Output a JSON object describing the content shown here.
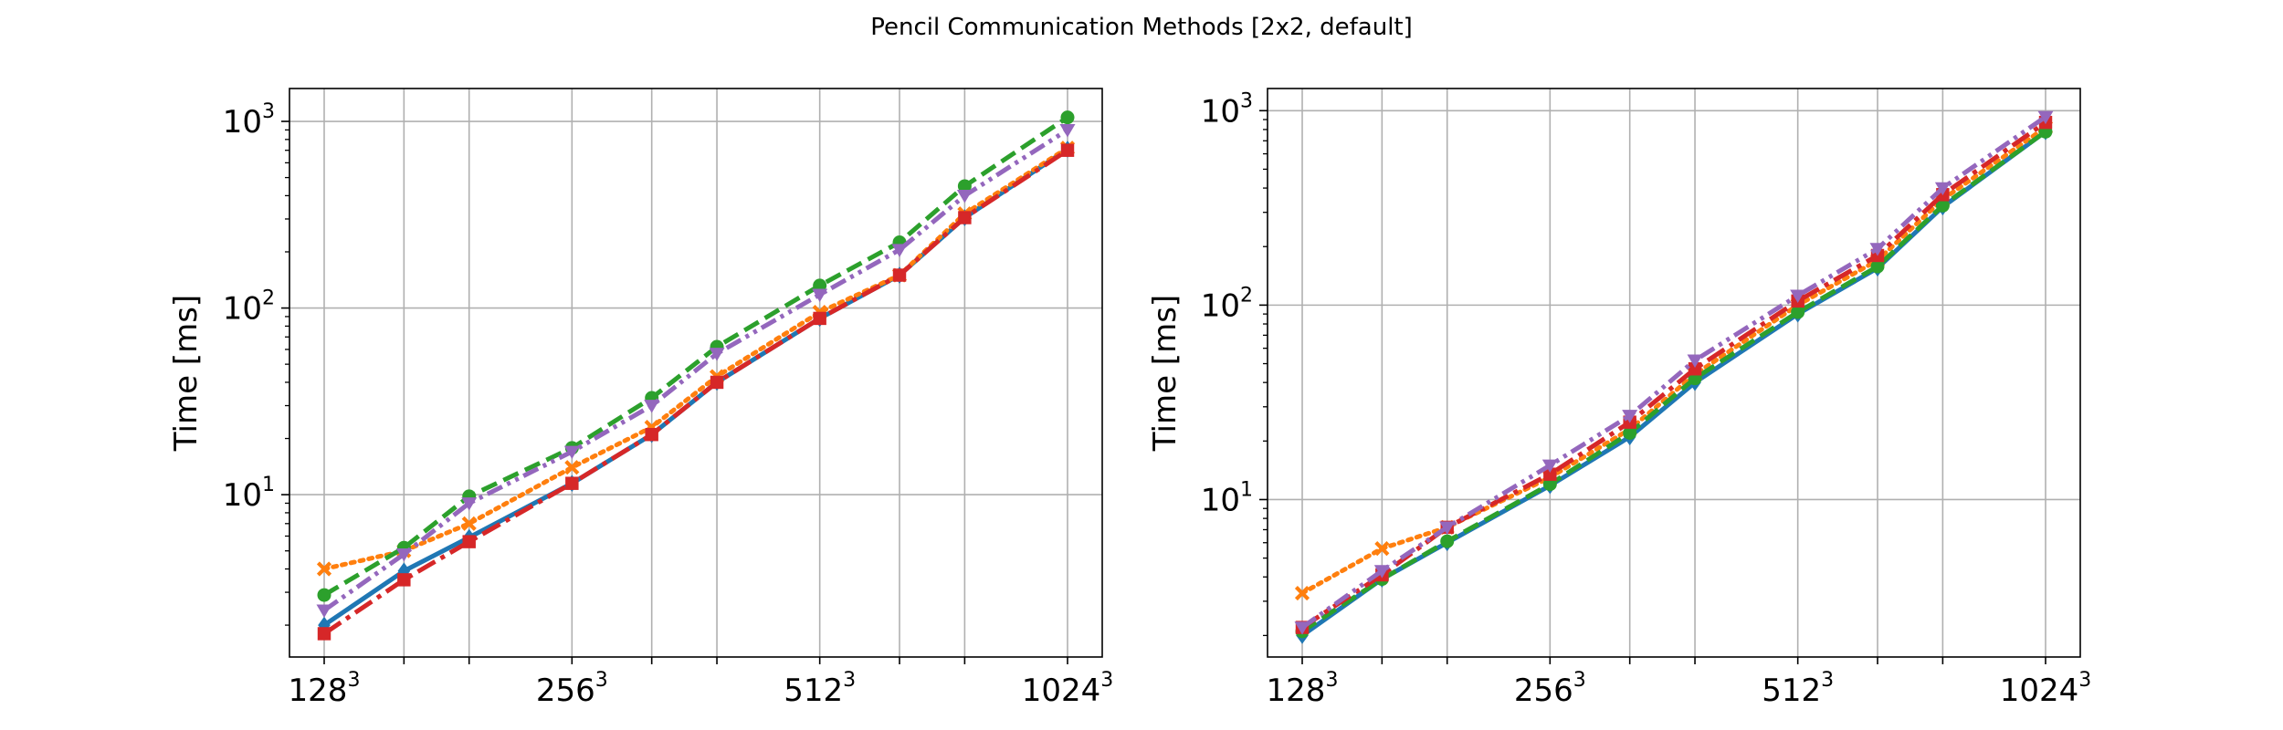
{
  "figure": {
    "title": "Pencil Communication Methods [2x2, default]"
  },
  "chart_data": [
    {
      "type": "line",
      "ylabel": "Time [ms]",
      "xlabel": "",
      "yscale": "log",
      "ylim": [
        1.35,
        1500
      ],
      "grid": true,
      "x": [
        128,
        160,
        192,
        256,
        320,
        384,
        512,
        640,
        768,
        1024
      ],
      "xtick_base": [
        128,
        256,
        512,
        1024
      ],
      "xtick_exp": "3",
      "ytick_values": [
        10,
        100,
        1000
      ],
      "ytick_base": "10",
      "ytick_exp": [
        "1",
        "2",
        "3"
      ],
      "series": [
        {
          "color": "#1f77b4",
          "dash": "solid",
          "marker": "diamond",
          "values": [
            2.0,
            3.9,
            5.9,
            11.5,
            21.0,
            40.0,
            88.0,
            150.0,
            305.0,
            710.0
          ]
        },
        {
          "color": "#ff7f0e",
          "dash": "dotted",
          "marker": "x",
          "values": [
            4.0,
            5.0,
            7.0,
            14.0,
            23.0,
            43.0,
            95.0,
            150.0,
            320.0,
            720.0
          ]
        },
        {
          "color": "#2ca02c",
          "dash": "dashed",
          "marker": "circle",
          "values": [
            2.9,
            5.2,
            9.8,
            17.8,
            33.0,
            62.0,
            132.0,
            225.0,
            450.0,
            1050.0
          ]
        },
        {
          "color": "#d62728",
          "dash": "dashdot",
          "marker": "square",
          "values": [
            1.8,
            3.5,
            5.6,
            11.5,
            21.0,
            40.0,
            88.0,
            150.0,
            305.0,
            700.0
          ]
        },
        {
          "color": "#9467bd",
          "dash": "dashdotdot",
          "marker": "triangle-down",
          "values": [
            2.4,
            4.8,
            9.0,
            17.0,
            30.0,
            57.0,
            118.0,
            205.0,
            400.0,
            900.0
          ]
        }
      ]
    },
    {
      "type": "line",
      "ylabel": "Time [ms]",
      "xlabel": "",
      "yscale": "log",
      "ylim": [
        1.55,
        1300
      ],
      "grid": true,
      "x": [
        128,
        160,
        192,
        256,
        320,
        384,
        512,
        640,
        768,
        1024
      ],
      "xtick_base": [
        128,
        256,
        512,
        1024
      ],
      "xtick_exp": "3",
      "ytick_values": [
        10,
        100,
        1000
      ],
      "ytick_base": "10",
      "ytick_exp": [
        "1",
        "2",
        "3"
      ],
      "series": [
        {
          "color": "#1f77b4",
          "dash": "solid",
          "marker": "diamond",
          "values": [
            2.0,
            3.9,
            6.0,
            11.8,
            21.0,
            40.0,
            90.0,
            155.0,
            320.0,
            780.0
          ]
        },
        {
          "color": "#ff7f0e",
          "dash": "dotted",
          "marker": "x",
          "values": [
            3.3,
            5.6,
            7.2,
            13.0,
            23.0,
            44.0,
            100.0,
            170.0,
            350.0,
            820.0
          ]
        },
        {
          "color": "#2ca02c",
          "dash": "dashed",
          "marker": "circle",
          "values": [
            2.1,
            3.9,
            6.1,
            12.0,
            22.0,
            42.0,
            92.0,
            158.0,
            325.0,
            780.0
          ]
        },
        {
          "color": "#d62728",
          "dash": "dashdot",
          "marker": "square",
          "values": [
            2.2,
            4.1,
            7.2,
            13.5,
            25.0,
            47.0,
            105.0,
            180.0,
            370.0,
            870.0
          ]
        },
        {
          "color": "#9467bd",
          "dash": "dashdotdot",
          "marker": "triangle-down",
          "values": [
            2.2,
            4.3,
            7.2,
            15.0,
            27.0,
            52.0,
            112.0,
            195.0,
            400.0,
            930.0
          ]
        }
      ]
    }
  ]
}
